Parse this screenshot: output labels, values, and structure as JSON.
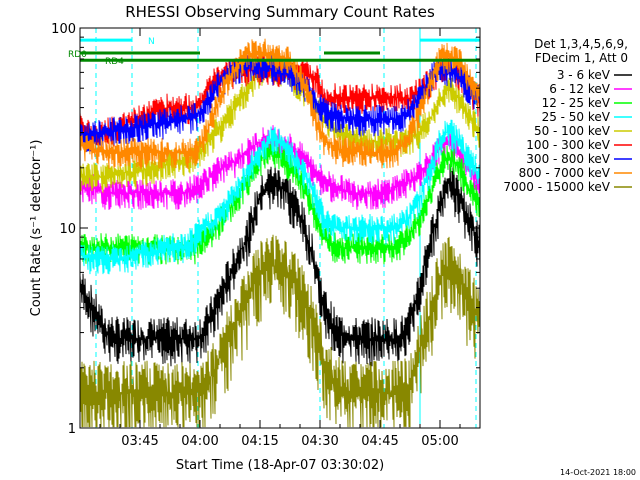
{
  "chart_data": {
    "type": "line",
    "title": "RHESSI Observing Summary Count Rates",
    "xlabel": "Start Time (18-Apr-07 03:30:02)",
    "ylabel": "Count Rate (s⁻¹ detector⁻¹)",
    "yscale": "log",
    "ylim": [
      1,
      100
    ],
    "xlim": [
      0,
      100
    ],
    "x_unit": "minutes after 03:30:02",
    "xticks": [
      {
        "x": 15,
        "label": "03:45"
      },
      {
        "x": 30,
        "label": "04:00"
      },
      {
        "x": 45,
        "label": "04:15"
      },
      {
        "x": 60,
        "label": "04:30"
      },
      {
        "x": 75,
        "label": "04:45"
      },
      {
        "x": 90,
        "label": "05:00"
      }
    ],
    "yticks": [
      {
        "y": 1,
        "label": "1"
      },
      {
        "y": 10,
        "label": "10"
      },
      {
        "y": 100,
        "label": "100"
      }
    ],
    "legend_header": [
      "Det 1,3,4,5,6,9,",
      "FDecim 1, Att 0"
    ],
    "legend_position": "right",
    "x": [
      0,
      3,
      6,
      10,
      14,
      18,
      22,
      26,
      29,
      31,
      34,
      38,
      42,
      45,
      48,
      52,
      56,
      59,
      61,
      64,
      68,
      72,
      76,
      79,
      82,
      85,
      88,
      90,
      92,
      95,
      97,
      100
    ],
    "series": [
      {
        "name": "3 - 6 keV",
        "color": "#000000",
        "values": [
          5,
          4,
          3,
          2.8,
          2.8,
          2.8,
          2.8,
          2.8,
          2.8,
          3,
          4,
          6,
          9,
          14,
          17,
          15,
          10,
          6,
          4,
          3,
          2.8,
          2.8,
          2.8,
          2.8,
          3,
          5,
          9,
          13,
          17,
          14,
          11,
          8
        ]
      },
      {
        "name": "6 - 12 keV",
        "color": "#ff00ff",
        "values": [
          16,
          16,
          15,
          15,
          15,
          15,
          15,
          15,
          16,
          17,
          19,
          21,
          24,
          27,
          28,
          26,
          22,
          19,
          17,
          16,
          15,
          15,
          15,
          16,
          17,
          19,
          22,
          25,
          27,
          24,
          20,
          17
        ]
      },
      {
        "name": "12 - 25 keV",
        "color": "#00ff00",
        "values": [
          8,
          8,
          8,
          8,
          8,
          8,
          8,
          8,
          8,
          9,
          10,
          13,
          17,
          22,
          24,
          21,
          16,
          11,
          9,
          8,
          8,
          8,
          8,
          8,
          9,
          11,
          15,
          20,
          23,
          20,
          16,
          13
        ]
      },
      {
        "name": "25 - 50 keV",
        "color": "#00ffff",
        "values": [
          7.5,
          7,
          7,
          7,
          7.5,
          7.5,
          8,
          8,
          9,
          10,
          11,
          14,
          19,
          24,
          28,
          25,
          19,
          14,
          11,
          10,
          10,
          10,
          10,
          10,
          11,
          14,
          20,
          27,
          31,
          27,
          22,
          18
        ]
      },
      {
        "name": "50 - 100 keV",
        "color": "#cccc00",
        "values": [
          18,
          18,
          18,
          19,
          19,
          20,
          21,
          22,
          23,
          26,
          30,
          38,
          50,
          60,
          65,
          58,
          48,
          40,
          35,
          30,
          28,
          27,
          27,
          27,
          28,
          30,
          36,
          44,
          50,
          44,
          36,
          30
        ]
      },
      {
        "name": "100 - 300 keV",
        "color": "#ff0000",
        "values": [
          34,
          28,
          30,
          32,
          35,
          38,
          40,
          40,
          40,
          45,
          55,
          60,
          62,
          63,
          62,
          60,
          58,
          57,
          44,
          45,
          45,
          45,
          45,
          45,
          44,
          48,
          55,
          62,
          65,
          58,
          50,
          42
        ]
      },
      {
        "name": "300 - 800 keV",
        "color": "#0000ff",
        "values": [
          28,
          29,
          30,
          31,
          32,
          33,
          34,
          35,
          36,
          40,
          50,
          62,
          65,
          64,
          63,
          60,
          52,
          42,
          38,
          36,
          35,
          35,
          35,
          35,
          38,
          45,
          58,
          64,
          62,
          58,
          50,
          44
        ]
      },
      {
        "name": "800 - 7000 keV",
        "color": "#ff8800",
        "values": [
          26,
          25,
          24,
          24,
          24,
          24,
          24,
          24,
          24,
          28,
          40,
          60,
          74,
          76,
          74,
          70,
          52,
          34,
          28,
          25,
          24,
          24,
          24,
          24,
          28,
          38,
          55,
          70,
          72,
          68,
          56,
          46
        ]
      },
      {
        "name": "7000 - 15000 keV",
        "color": "#888800",
        "values": [
          1.5,
          1.5,
          1.5,
          1.5,
          1.5,
          1.5,
          1.5,
          1.5,
          1.5,
          1.6,
          2,
          3,
          4.5,
          6,
          6.5,
          6,
          4.5,
          3,
          2,
          1.6,
          1.5,
          1.5,
          1.5,
          1.5,
          1.6,
          2.5,
          4,
          5.5,
          6.5,
          5.5,
          4.5,
          3.5
        ]
      }
    ],
    "flags": [
      {
        "label": "RD0",
        "color": "#008800",
        "y": 75,
        "spans": [
          [
            0,
            30
          ],
          [
            61,
            75
          ]
        ]
      },
      {
        "label": "RD4",
        "color": "#008800",
        "y": 69,
        "spans": [
          [
            0,
            100
          ]
        ]
      },
      {
        "label": "N",
        "color": "#00ffff",
        "y": 87,
        "spans": [
          [
            0,
            13
          ],
          [
            85,
            100
          ]
        ]
      }
    ],
    "event_lines": [
      {
        "x": 4,
        "color": "#00ffff",
        "style": "dashed"
      },
      {
        "x": 13,
        "color": "#00ffff",
        "style": "dashed"
      },
      {
        "x": 29.5,
        "color": "#00ffff",
        "style": "dashed"
      },
      {
        "x": 60,
        "color": "#00ffff",
        "style": "dashed"
      },
      {
        "x": 76,
        "color": "#00ffff",
        "style": "dashed"
      },
      {
        "x": 85,
        "color": "#00ffff",
        "style": "solid"
      },
      {
        "x": 99,
        "color": "#00ffff",
        "style": "dashed"
      }
    ]
  },
  "timestamp": "14-Oct-2021 18:00"
}
